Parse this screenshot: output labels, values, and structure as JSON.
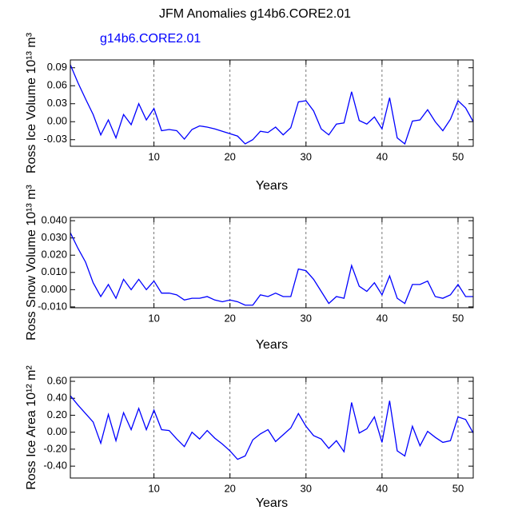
{
  "chart_data": [
    {
      "type": "line",
      "title": "JFM Anomalies g14b6.CORE2.01",
      "xlabel": "Years",
      "ylabel": "Ross Ice Volume 10¹³ m³",
      "x": [
        -1,
        0,
        1,
        2,
        3,
        4,
        5,
        6,
        7,
        8,
        9,
        10,
        11,
        12,
        13,
        14,
        15,
        16,
        17,
        18,
        19,
        20,
        21,
        22,
        23,
        24,
        25,
        26,
        27,
        28,
        29,
        30,
        31,
        32,
        33,
        34,
        35,
        36,
        37,
        38,
        39,
        40,
        41,
        42,
        43,
        44,
        45,
        46,
        47,
        48,
        49,
        50,
        51,
        52
      ],
      "series": [
        {
          "name": "g14b6.CORE2.01",
          "color": "#0000ff",
          "values": [
            0.095,
            0.065,
            0.038,
            0.012,
            -0.022,
            0.003,
            -0.027,
            0.012,
            -0.005,
            0.03,
            0.003,
            0.022,
            -0.015,
            -0.013,
            -0.015,
            -0.029,
            -0.013,
            -0.007,
            -0.009,
            -0.012,
            -0.016,
            -0.02,
            -0.024,
            -0.037,
            -0.03,
            -0.016,
            -0.018,
            -0.009,
            -0.022,
            -0.01,
            0.033,
            0.035,
            0.018,
            -0.012,
            -0.022,
            -0.004,
            -0.002,
            0.05,
            0.002,
            -0.004,
            0.008,
            -0.012,
            0.04,
            -0.027,
            -0.037,
            0.001,
            0.003,
            0.02,
            0.0,
            -0.015,
            0.004,
            0.035,
            0.023,
            0.0
          ]
        }
      ],
      "xlim": [
        -1,
        52
      ],
      "xticks": [
        10,
        20,
        30,
        40,
        50
      ],
      "ylim": [
        -0.041,
        0.103
      ],
      "yticks": [
        {
          "value": -0.03,
          "label": "-0.03"
        },
        {
          "value": 0,
          "label": "0.00"
        },
        {
          "value": 0.03,
          "label": "0.03"
        },
        {
          "value": 0.06,
          "label": "0.06"
        },
        {
          "value": 0.09,
          "label": "0.09"
        }
      ],
      "grid": "x-dashed"
    },
    {
      "type": "line",
      "xlabel": "Years",
      "ylabel": "Ross Snow Volume 10¹³ m³",
      "x": [
        -1,
        0,
        1,
        2,
        3,
        4,
        5,
        6,
        7,
        8,
        9,
        10,
        11,
        12,
        13,
        14,
        15,
        16,
        17,
        18,
        19,
        20,
        21,
        22,
        23,
        24,
        25,
        26,
        27,
        28,
        29,
        30,
        31,
        32,
        33,
        34,
        35,
        36,
        37,
        38,
        39,
        40,
        41,
        42,
        43,
        44,
        45,
        46,
        47,
        48,
        49,
        50,
        51,
        52
      ],
      "color": "#0000ff",
      "values": [
        0.033,
        0.024,
        0.016,
        0.004,
        -0.004,
        0.003,
        -0.005,
        0.006,
        0.0,
        0.006,
        0.0,
        0.005,
        -0.002,
        -0.002,
        -0.003,
        -0.006,
        -0.005,
        -0.005,
        -0.004,
        -0.006,
        -0.007,
        -0.006,
        -0.007,
        -0.009,
        -0.009,
        -0.003,
        -0.004,
        -0.002,
        -0.004,
        -0.004,
        0.012,
        0.011,
        0.006,
        -0.001,
        -0.008,
        -0.004,
        -0.005,
        0.014,
        0.002,
        -0.001,
        0.004,
        -0.003,
        0.008,
        -0.005,
        -0.008,
        0.003,
        0.003,
        0.005,
        -0.004,
        -0.005,
        -0.003,
        0.003,
        -0.004,
        -0.004
      ],
      "xlim": [
        -1,
        52
      ],
      "xticks": [
        10,
        20,
        30,
        40,
        50
      ],
      "ylim": [
        -0.0105,
        0.0419
      ],
      "yticks": [
        {
          "value": -0.01,
          "label": "-0.010"
        },
        {
          "value": 0,
          "label": "0.000"
        },
        {
          "value": 0.01,
          "label": "0.010"
        },
        {
          "value": 0.02,
          "label": "0.020"
        },
        {
          "value": 0.03,
          "label": "0.030"
        },
        {
          "value": 0.04,
          "label": "0.040"
        }
      ],
      "grid": "x-dashed"
    },
    {
      "type": "line",
      "xlabel": "Years",
      "ylabel": "Ross Ice Area 10¹² m²",
      "x": [
        -1,
        0,
        1,
        2,
        3,
        4,
        5,
        6,
        7,
        8,
        9,
        10,
        11,
        12,
        13,
        14,
        15,
        16,
        17,
        18,
        19,
        20,
        21,
        22,
        23,
        24,
        25,
        26,
        27,
        28,
        29,
        30,
        31,
        32,
        33,
        34,
        35,
        36,
        37,
        38,
        39,
        40,
        41,
        42,
        43,
        44,
        45,
        46,
        47,
        48,
        49,
        50,
        51,
        52
      ],
      "color": "#0000ff",
      "values": [
        0.43,
        0.32,
        0.22,
        0.12,
        -0.13,
        0.21,
        -0.1,
        0.23,
        0.03,
        0.28,
        0.03,
        0.26,
        0.03,
        0.02,
        -0.08,
        -0.17,
        0.0,
        -0.08,
        0.02,
        -0.07,
        -0.14,
        -0.22,
        -0.32,
        -0.28,
        -0.09,
        -0.02,
        0.03,
        -0.11,
        -0.03,
        0.05,
        0.22,
        0.07,
        -0.04,
        -0.08,
        -0.19,
        -0.1,
        -0.23,
        0.35,
        -0.01,
        0.04,
        0.18,
        -0.12,
        0.37,
        -0.22,
        -0.28,
        0.07,
        -0.16,
        0.01,
        -0.06,
        -0.12,
        -0.1,
        0.18,
        0.15,
        -0.01
      ],
      "xlim": [
        -1,
        52
      ],
      "xticks": [
        10,
        20,
        30,
        40,
        50
      ],
      "ylim": [
        -0.54,
        0.647
      ],
      "yticks": [
        {
          "value": -0.4,
          "label": "-0.40"
        },
        {
          "value": -0.2,
          "label": "-0.20"
        },
        {
          "value": 0,
          "label": "0.00"
        },
        {
          "value": 0.2,
          "label": "0.20"
        },
        {
          "value": 0.4,
          "label": "0.40"
        },
        {
          "value": 0.6,
          "label": "0.60"
        }
      ],
      "grid": "x-dashed"
    }
  ]
}
